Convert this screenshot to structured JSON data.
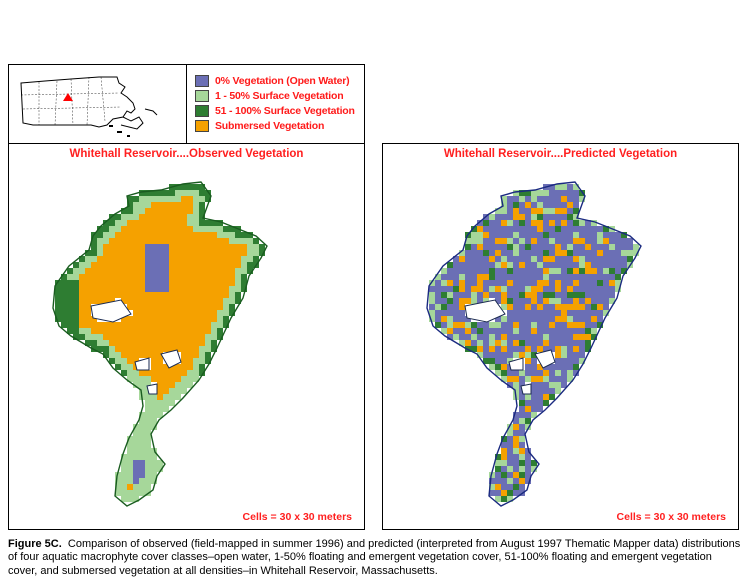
{
  "legend": {
    "items": [
      {
        "label": "0% Vegetation (Open Water)",
        "color": "#6b6fb5"
      },
      {
        "label": "1 - 50% Surface Vegetation",
        "color": "#a6d79a"
      },
      {
        "label": "51 - 100% Surface Vegetation",
        "color": "#2e7d32"
      },
      {
        "label": "Submersed Vegetation",
        "color": "#f5a100"
      }
    ]
  },
  "locator": {
    "marker_color": "#ff0000"
  },
  "maps": {
    "observed": {
      "title": "Whitehall Reservoir....Observed Vegetation",
      "scale_note": "Cells = 30 x 30 meters"
    },
    "predicted": {
      "title": "Whitehall Reservoir....Predicted Vegetation",
      "scale_note": "Cells = 30 x 30 meters"
    }
  },
  "caption": {
    "label": "Figure 5C.",
    "text": "Comparison of observed (field-mapped in summer 1996) and predicted (interpreted from August 1997 Thematic Mapper data) distributions of four aquatic macrophyte cover classes–open water, 1-50% floating and emergent vegetation cover, 51-100% floating and emergent vegetation cover, and submersed vegetation at all densities–in Whitehall Reservoir, Massachusetts."
  }
}
